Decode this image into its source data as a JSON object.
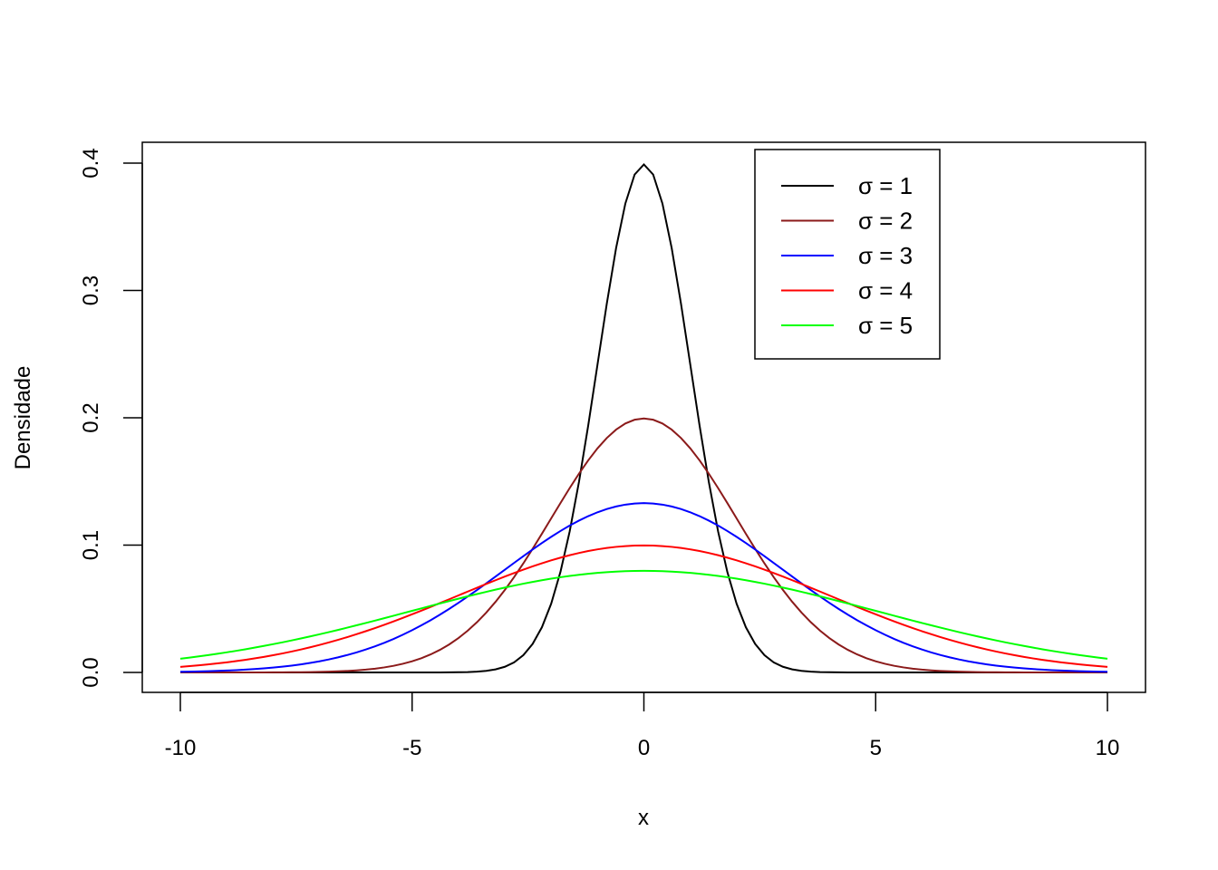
{
  "chart_data": {
    "type": "line",
    "title": "",
    "xlabel": "x",
    "ylabel": "Densidade",
    "xlim": [
      -10,
      10
    ],
    "ylim": [
      0,
      0.4
    ],
    "x_ticks": [
      -10,
      -5,
      0,
      5,
      10
    ],
    "y_ticks": [
      0.0,
      0.1,
      0.2,
      0.3,
      0.4
    ],
    "x_tick_labels": [
      "-10",
      "-5",
      "0",
      "5",
      "10"
    ],
    "y_tick_labels": [
      "0.0",
      "0.1",
      "0.2",
      "0.3",
      "0.4"
    ],
    "x": [
      -10,
      -9,
      -8,
      -7,
      -6,
      -5,
      -4,
      -3,
      -2.5,
      -2,
      -1.5,
      -1,
      -0.5,
      0,
      0.5,
      1,
      1.5,
      2,
      2.5,
      3,
      4,
      5,
      6,
      7,
      8,
      9,
      10
    ],
    "series": [
      {
        "name": "σ = 1",
        "color": "#000000",
        "values": [
          0.0,
          0.0,
          0.0,
          0.0,
          0.0,
          0.0,
          0.0001,
          0.0044,
          0.0175,
          0.054,
          0.1295,
          0.242,
          0.3521,
          0.3989,
          0.3521,
          0.242,
          0.1295,
          0.054,
          0.0175,
          0.0044,
          0.0001,
          0.0,
          0.0,
          0.0,
          0.0,
          0.0,
          0.0
        ]
      },
      {
        "name": "σ = 2",
        "color": "#8b1a1a",
        "values": [
          0.0,
          0.0,
          0.0001,
          0.0004,
          0.0022,
          0.0088,
          0.027,
          0.0648,
          0.0913,
          0.121,
          0.1506,
          0.176,
          0.1933,
          0.1995,
          0.1933,
          0.176,
          0.1506,
          0.121,
          0.0913,
          0.0648,
          0.027,
          0.0088,
          0.0022,
          0.0004,
          0.0001,
          0.0,
          0.0
        ]
      },
      {
        "name": "σ = 3",
        "color": "#0000ff",
        "values": [
          0.0005,
          0.0015,
          0.0038,
          0.0088,
          0.018,
          0.0332,
          0.0547,
          0.0807,
          0.0941,
          0.1065,
          0.1174,
          0.1258,
          0.1311,
          0.133,
          0.1311,
          0.1258,
          0.1174,
          0.1065,
          0.0941,
          0.0807,
          0.0547,
          0.0332,
          0.018,
          0.0088,
          0.0038,
          0.0015,
          0.0005
        ]
      },
      {
        "name": "σ = 4",
        "color": "#ff0000",
        "values": [
          0.0044,
          0.008,
          0.0135,
          0.0216,
          0.0324,
          0.0457,
          0.0605,
          0.0753,
          0.0822,
          0.088,
          0.0929,
          0.0967,
          0.0992,
          0.0997,
          0.0992,
          0.0967,
          0.0929,
          0.088,
          0.0822,
          0.0753,
          0.0605,
          0.0457,
          0.0324,
          0.0216,
          0.0135,
          0.008,
          0.0044
        ]
      },
      {
        "name": "σ = 5",
        "color": "#00ff00",
        "values": [
          0.0108,
          0.0158,
          0.0222,
          0.0299,
          0.0388,
          0.0484,
          0.0579,
          0.0666,
          0.0704,
          0.0737,
          0.0762,
          0.0782,
          0.0794,
          0.0798,
          0.0794,
          0.0782,
          0.0762,
          0.0737,
          0.0704,
          0.0666,
          0.0579,
          0.0484,
          0.0388,
          0.0299,
          0.0222,
          0.0158,
          0.0108
        ]
      }
    ],
    "legend_position": "top-right",
    "grid": false
  }
}
